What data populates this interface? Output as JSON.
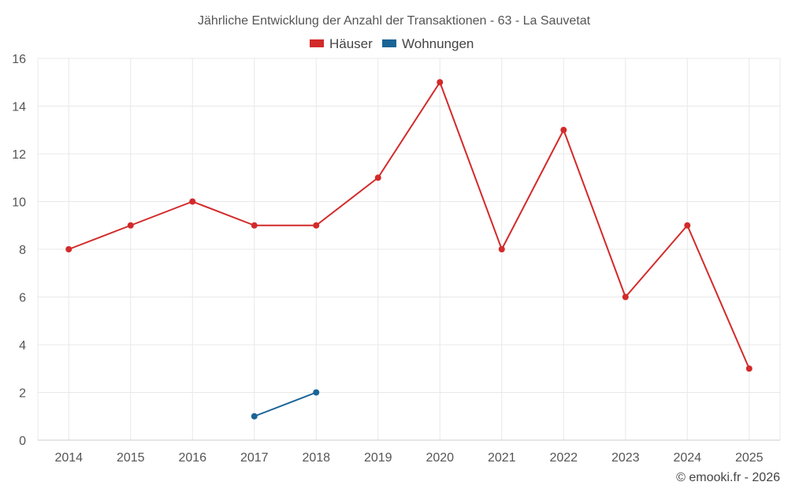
{
  "chart_data": {
    "type": "line",
    "title": "Jährliche Entwicklung der Anzahl der Transaktionen - 63 - La Sauvetat",
    "categories": [
      "2014",
      "2015",
      "2016",
      "2017",
      "2018",
      "2019",
      "2020",
      "2021",
      "2022",
      "2023",
      "2024",
      "2025"
    ],
    "series": [
      {
        "name": "Häuser",
        "color": "#d32a2a",
        "values": [
          8,
          9,
          10,
          9,
          9,
          11,
          15,
          8,
          13,
          6,
          9,
          3
        ]
      },
      {
        "name": "Wohnungen",
        "color": "#1a6496",
        "values": [
          null,
          null,
          null,
          1,
          2,
          null,
          null,
          null,
          null,
          null,
          null,
          null
        ]
      }
    ],
    "ylim": [
      0,
      16
    ],
    "yticks": [
      0,
      2,
      4,
      6,
      8,
      10,
      12,
      14,
      16
    ],
    "grid": true,
    "legend_position": "top-center",
    "xlabel": "",
    "ylabel": ""
  },
  "credit": "© emooki.fr - 2026"
}
